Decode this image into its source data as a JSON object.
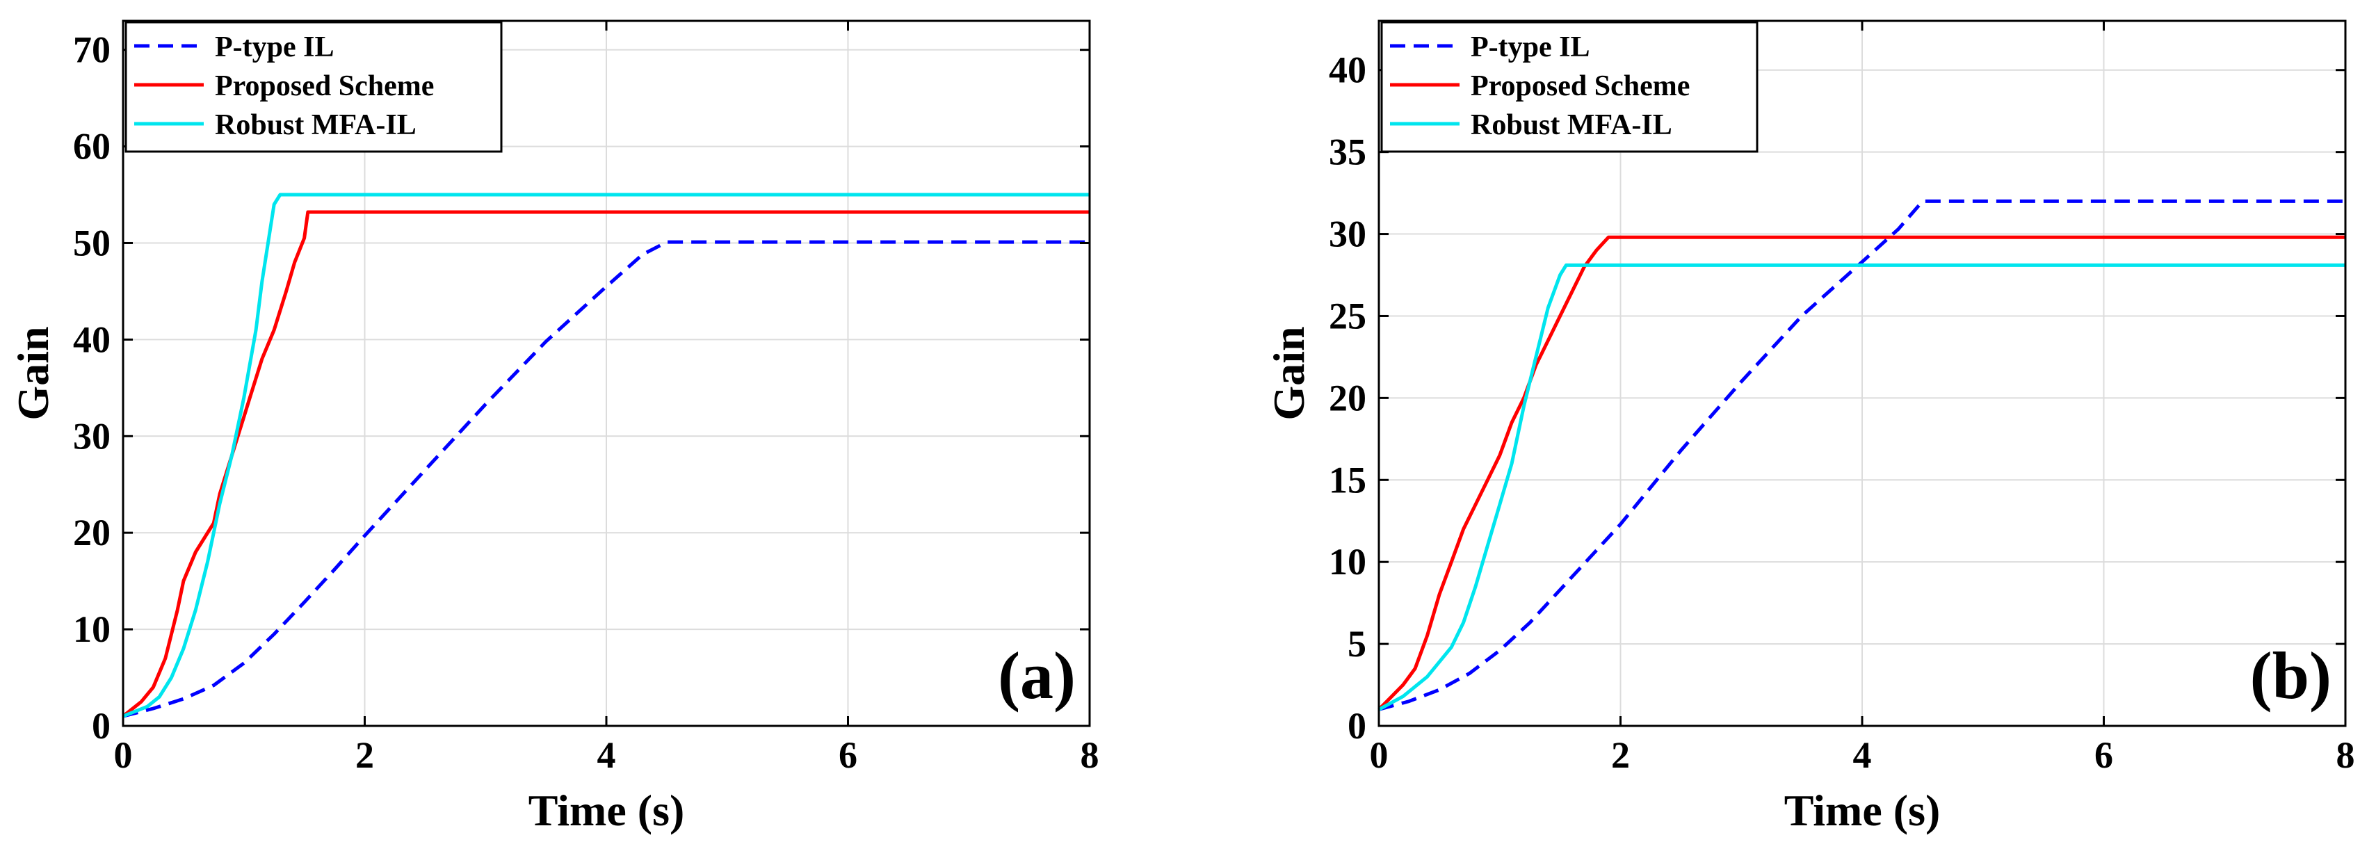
{
  "chart_data": [
    {
      "type": "line",
      "panel_label": "(a)",
      "xlabel": "Time (s)",
      "ylabel": "Gain",
      "xlim": [
        0,
        8
      ],
      "ylim": [
        0,
        73
      ],
      "xticks": [
        0,
        2,
        4,
        6,
        8
      ],
      "yticks": [
        0,
        10,
        20,
        30,
        40,
        50,
        60,
        70
      ],
      "grid": true,
      "legend_position": "top-left",
      "series": [
        {
          "name": "P-type IL",
          "color": "#0000ff",
          "style": "dashed",
          "x": [
            0,
            0.25,
            0.5,
            0.75,
            1.0,
            1.25,
            1.5,
            1.75,
            2.0,
            2.5,
            3.0,
            3.5,
            4.0,
            4.3,
            4.5,
            4.55,
            5.0,
            6.0,
            7.0,
            8.0
          ],
          "y": [
            1,
            1.8,
            2.8,
            4.2,
            6.5,
            9.5,
            12.8,
            16.2,
            19.7,
            26.5,
            33.3,
            39.8,
            45.5,
            48.8,
            50.1,
            50.1,
            50.1,
            50.1,
            50.1,
            50.1
          ]
        },
        {
          "name": "Proposed Scheme",
          "color": "#ff0000",
          "style": "solid",
          "x": [
            0,
            0.15,
            0.25,
            0.35,
            0.45,
            0.5,
            0.6,
            0.7,
            0.75,
            0.8,
            0.9,
            1.0,
            1.05,
            1.15,
            1.25,
            1.35,
            1.42,
            1.5,
            1.53,
            2.0,
            3.0,
            4.0,
            5.0,
            6.0,
            7.0,
            8.0
          ],
          "y": [
            1,
            2.5,
            4,
            7,
            12,
            15,
            18,
            20,
            21,
            24,
            28,
            32,
            34,
            38,
            41,
            45,
            48,
            50.5,
            53.2,
            53.2,
            53.2,
            53.2,
            53.2,
            53.2,
            53.2,
            53.2
          ]
        },
        {
          "name": "Robust MFA-IL",
          "color": "#00e5ee",
          "style": "solid",
          "x": [
            0,
            0.2,
            0.3,
            0.4,
            0.5,
            0.6,
            0.7,
            0.8,
            0.9,
            1.0,
            1.1,
            1.15,
            1.2,
            1.25,
            1.3,
            1.5,
            2.0,
            3.0,
            4.0,
            5.0,
            6.0,
            7.0,
            8.0
          ],
          "y": [
            1,
            2,
            3,
            5,
            8,
            12,
            17,
            23,
            28,
            34,
            41,
            46,
            50,
            54,
            55,
            55,
            55,
            55,
            55,
            55,
            55,
            55,
            55
          ]
        }
      ]
    },
    {
      "type": "line",
      "panel_label": "(b)",
      "xlabel": "Time (s)",
      "ylabel": "Gain",
      "xlim": [
        0,
        8
      ],
      "ylim": [
        0,
        43
      ],
      "xticks": [
        0,
        2,
        4,
        6,
        8
      ],
      "yticks": [
        0,
        5,
        10,
        15,
        20,
        25,
        30,
        35,
        40
      ],
      "grid": true,
      "legend_position": "top-left",
      "series": [
        {
          "name": "P-type IL",
          "color": "#0000ff",
          "style": "dashed",
          "x": [
            0,
            0.25,
            0.5,
            0.75,
            1.0,
            1.25,
            1.5,
            1.75,
            2.0,
            2.5,
            3.0,
            3.5,
            4.0,
            4.3,
            4.5,
            4.55,
            5.0,
            6.0,
            7.0,
            8.0
          ],
          "y": [
            1,
            1.5,
            2.2,
            3.2,
            4.6,
            6.3,
            8.3,
            10.3,
            12.3,
            16.8,
            21.0,
            25.0,
            28.3,
            30.3,
            32.0,
            32.0,
            32.0,
            32.0,
            32.0,
            32.0
          ]
        },
        {
          "name": "Proposed Scheme",
          "color": "#ff0000",
          "style": "solid",
          "x": [
            0,
            0.2,
            0.3,
            0.4,
            0.5,
            0.6,
            0.7,
            0.8,
            0.9,
            1.0,
            1.1,
            1.2,
            1.3,
            1.4,
            1.5,
            1.6,
            1.7,
            1.8,
            1.9,
            2.0,
            3.0,
            4.0,
            5.0,
            6.0,
            7.0,
            8.0
          ],
          "y": [
            1,
            2.5,
            3.5,
            5.5,
            8,
            10,
            12,
            13.5,
            15,
            16.5,
            18.5,
            20,
            22,
            23.5,
            25,
            26.5,
            28,
            29,
            29.8,
            29.8,
            29.8,
            29.8,
            29.8,
            29.8,
            29.8,
            29.8
          ]
        },
        {
          "name": "Robust MFA-IL",
          "color": "#00e5ee",
          "style": "solid",
          "x": [
            0,
            0.2,
            0.4,
            0.6,
            0.7,
            0.8,
            0.9,
            1.0,
            1.1,
            1.2,
            1.3,
            1.4,
            1.5,
            1.55,
            1.6,
            2.0,
            3.0,
            4.0,
            5.0,
            6.0,
            7.0,
            8.0
          ],
          "y": [
            1,
            1.8,
            3,
            4.8,
            6.3,
            8.5,
            11,
            13.5,
            16,
            19.5,
            22.5,
            25.5,
            27.5,
            28.1,
            28.1,
            28.1,
            28.1,
            28.1,
            28.1,
            28.1,
            28.1,
            28.1
          ]
        }
      ]
    }
  ]
}
